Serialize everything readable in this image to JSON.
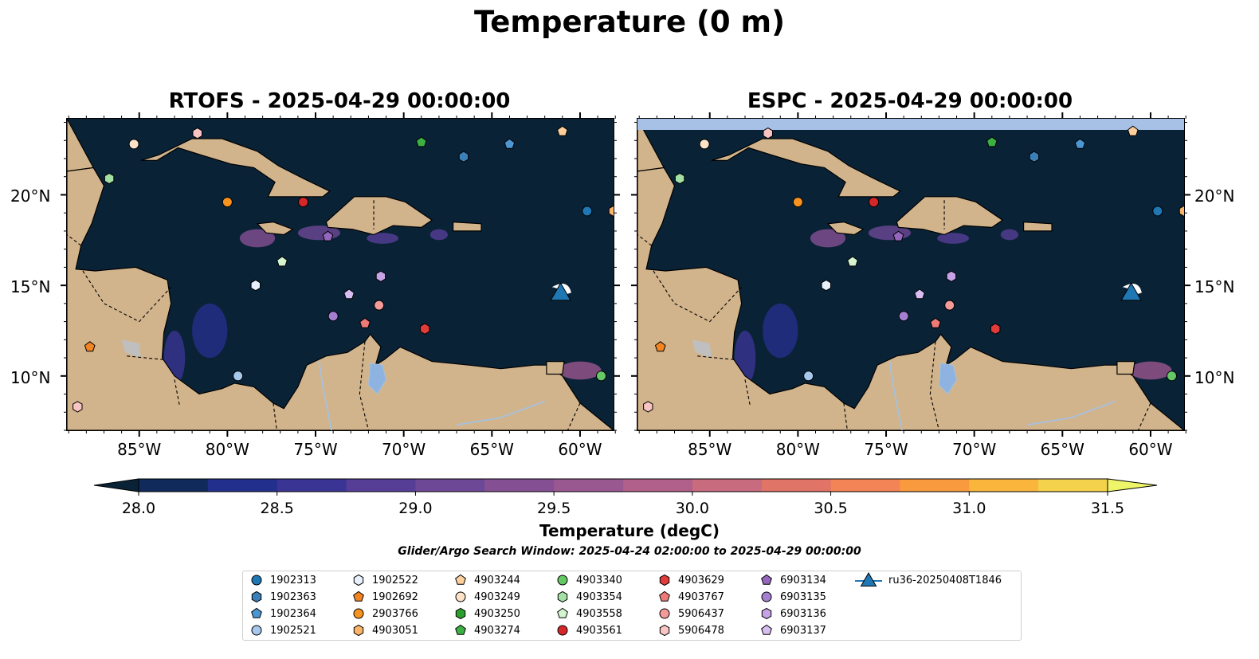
{
  "suptitle": "Temperature (0 m)",
  "panels": [
    {
      "title": "RTOFS - 2025-04-29 00:00:00"
    },
    {
      "title": "ESPC - 2025-04-29 00:00:00"
    }
  ],
  "lon_ticks": [
    "85°W",
    "80°W",
    "75°W",
    "70°W",
    "65°W",
    "60°W"
  ],
  "lat_ticks": [
    "20°N",
    "15°N",
    "10°N"
  ],
  "colorbar": {
    "title": "Temperature (degC)",
    "ticks": [
      "28.0",
      "28.5",
      "29.0",
      "29.5",
      "30.0",
      "30.5",
      "31.0",
      "31.5"
    ],
    "colors": [
      "#0a2236",
      "#112a5c",
      "#232f8c",
      "#3a3595",
      "#563e97",
      "#6d4896",
      "#855093",
      "#9a5890",
      "#b0608a",
      "#c86b7f",
      "#e07466",
      "#f28456",
      "#f99a3e",
      "#fab63c",
      "#f4d24c",
      "#eef568"
    ]
  },
  "search_window": "Glider/Argo Search Window: 2025-04-24 02:00:00 to 2025-04-29 00:00:00",
  "colors": {
    "land": "#d2b48c",
    "ocean": "#0a2236",
    "lake": "#8fb3e0",
    "river": "#a6c1de",
    "glider": "#1f77b4",
    "espc_band": "#a7c0e6"
  },
  "legend": [
    {
      "id": "1902313",
      "shape": "circle",
      "color": "#1f77b4"
    },
    {
      "id": "1902363",
      "shape": "hexagon",
      "color": "#3a7fb8"
    },
    {
      "id": "1902364",
      "shape": "pentagon",
      "color": "#4c96d2"
    },
    {
      "id": "1902521",
      "shape": "circle",
      "color": "#a6c8ec"
    },
    {
      "id": "1902522",
      "shape": "hexagon",
      "color": "#e8f0fb"
    },
    {
      "id": "1902692",
      "shape": "pentagon",
      "color": "#f28522"
    },
    {
      "id": "2903766",
      "shape": "circle",
      "color": "#f7931e"
    },
    {
      "id": "4903051",
      "shape": "hexagon",
      "color": "#fbb36a"
    },
    {
      "id": "4903244",
      "shape": "pentagon",
      "color": "#fccf9c"
    },
    {
      "id": "4903249",
      "shape": "circle",
      "color": "#fde2c8"
    },
    {
      "id": "4903250",
      "shape": "hexagon",
      "color": "#2ca02c"
    },
    {
      "id": "4903274",
      "shape": "pentagon",
      "color": "#3cb043"
    },
    {
      "id": "4903340",
      "shape": "circle",
      "color": "#64c864"
    },
    {
      "id": "4903354",
      "shape": "hexagon",
      "color": "#a3e0a3"
    },
    {
      "id": "4903558",
      "shape": "pentagon",
      "color": "#d4f5d0"
    },
    {
      "id": "4903561",
      "shape": "circle",
      "color": "#d62728"
    },
    {
      "id": "4903629",
      "shape": "hexagon",
      "color": "#e23b3b"
    },
    {
      "id": "4903767",
      "shape": "pentagon",
      "color": "#ee7a78"
    },
    {
      "id": "5906437",
      "shape": "circle",
      "color": "#f49a98"
    },
    {
      "id": "5906478",
      "shape": "hexagon",
      "color": "#f8c4c4"
    },
    {
      "id": "6903134",
      "shape": "pentagon",
      "color": "#9467bd"
    },
    {
      "id": "6903135",
      "shape": "circle",
      "color": "#a57fcf"
    },
    {
      "id": "6903136",
      "shape": "hexagon",
      "color": "#c5a3e6"
    },
    {
      "id": "6903137",
      "shape": "pentagon",
      "color": "#d8bdf2"
    },
    {
      "id": "ru36-20250408T1846",
      "shape": "triangle",
      "color": "#1f77b4"
    }
  ],
  "markers": [
    {
      "id": "4903249",
      "shape": "circle",
      "lon": -85.3,
      "lat": 22.8
    },
    {
      "id": "5906478",
      "shape": "hexagon",
      "lon": -81.7,
      "lat": 23.4
    },
    {
      "id": "4903274",
      "shape": "pentagon",
      "lon": -69.0,
      "lat": 22.9
    },
    {
      "id": "1902363",
      "shape": "hexagon",
      "lon": -66.6,
      "lat": 22.1
    },
    {
      "id": "1902364",
      "shape": "pentagon",
      "lon": -64.0,
      "lat": 22.8
    },
    {
      "id": "4903244",
      "shape": "pentagon",
      "lon": -61.0,
      "lat": 23.5
    },
    {
      "id": "4903354",
      "shape": "hexagon",
      "lon": -86.7,
      "lat": 20.9
    },
    {
      "id": "2903766",
      "shape": "circle",
      "lon": -80.0,
      "lat": 19.6
    },
    {
      "id": "4903561",
      "shape": "circle",
      "lon": -75.7,
      "lat": 19.6
    },
    {
      "id": "1902313",
      "shape": "circle",
      "lon": -59.6,
      "lat": 19.1
    },
    {
      "id": "4903051",
      "shape": "hexagon",
      "lon": -58.1,
      "lat": 19.1
    },
    {
      "id": "6903134",
      "shape": "pentagon",
      "lon": -74.3,
      "lat": 17.7
    },
    {
      "id": "4903558",
      "shape": "pentagon",
      "lon": -76.9,
      "lat": 16.3
    },
    {
      "id": "1902522",
      "shape": "hexagon",
      "lon": -78.4,
      "lat": 15.0
    },
    {
      "id": "6903136",
      "shape": "hexagon",
      "lon": -71.3,
      "lat": 15.5
    },
    {
      "id": "6903137",
      "shape": "pentagon",
      "lon": -73.1,
      "lat": 14.5
    },
    {
      "id": "5906437",
      "shape": "circle",
      "lon": -71.4,
      "lat": 13.9
    },
    {
      "id": "6903135",
      "shape": "circle",
      "lon": -74.0,
      "lat": 13.3
    },
    {
      "id": "4903767",
      "shape": "pentagon",
      "lon": -72.2,
      "lat": 12.9
    },
    {
      "id": "4903629",
      "shape": "hexagon",
      "lon": -68.8,
      "lat": 12.6
    },
    {
      "id": "1902692",
      "shape": "pentagon",
      "lon": -87.8,
      "lat": 11.6
    },
    {
      "id": "1902521",
      "shape": "circle",
      "lon": -79.4,
      "lat": 10.0
    },
    {
      "id": "4903340",
      "shape": "circle",
      "lon": -58.8,
      "lat": 10.0
    },
    {
      "id": "5906478",
      "shape": "hexagon",
      "lon": -88.5,
      "lat": 8.3
    },
    {
      "id": "ru36-20250408T1846",
      "shape": "triangle",
      "lon": -61.1,
      "lat": 14.5
    }
  ]
}
